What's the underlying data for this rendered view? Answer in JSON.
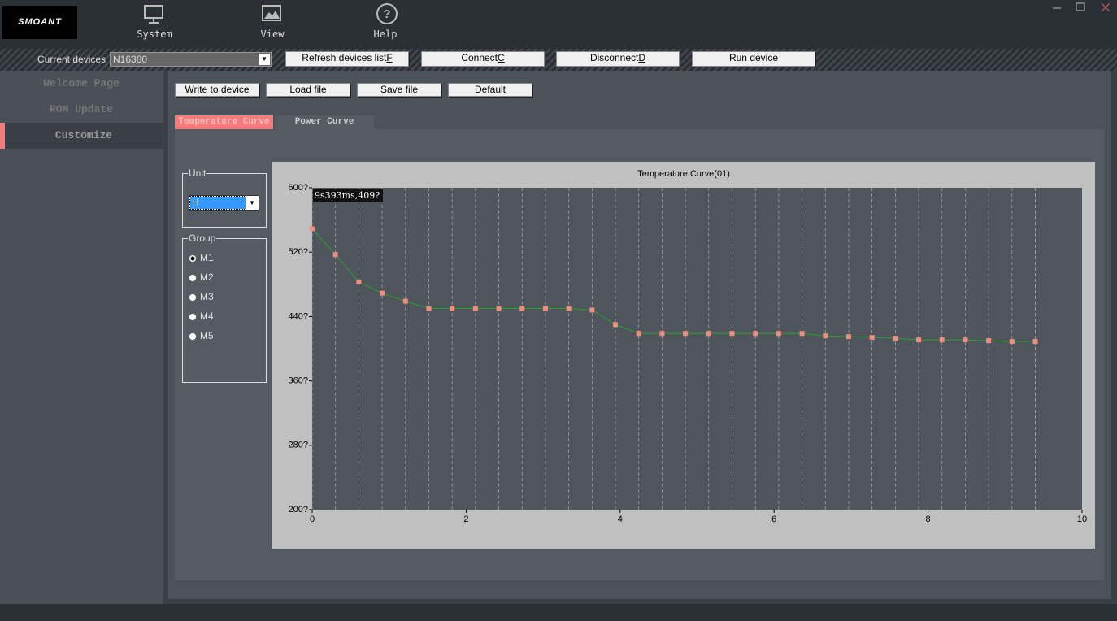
{
  "app": {
    "logo": "SMOANT",
    "nav": [
      "System",
      "View",
      "Help"
    ]
  },
  "toolbar": {
    "device_label": "Current devices",
    "device": "N16380",
    "buttons": [
      {
        "text": "Refresh devices list",
        "key": "F"
      },
      {
        "text": "Connect",
        "key": "C"
      },
      {
        "text": "Disconnect",
        "key": "D"
      },
      {
        "text": "Run device"
      }
    ]
  },
  "sidebar": {
    "items": [
      "Welcome Page",
      "ROM Update",
      "Customize"
    ]
  },
  "actions": [
    "Write to device",
    "Load file",
    "Save file",
    "Default"
  ],
  "tabs": [
    "Temperature Curve",
    "Power Curve"
  ],
  "unit": {
    "label": "Unit",
    "value": "H"
  },
  "group": {
    "label": "Group",
    "options": [
      "M1",
      "M2",
      "M3",
      "M4",
      "M5"
    ]
  },
  "chart": {
    "type": "line",
    "title": "Temperature Curve(01)",
    "x": [
      0,
      0.303,
      0.606,
      0.909,
      1.212,
      1.515,
      1.818,
      2.121,
      2.424,
      2.727,
      3.03,
      3.333,
      3.636,
      3.939,
      4.242,
      4.545,
      4.848,
      5.151,
      5.454,
      5.757,
      6.06,
      6.363,
      6.666,
      6.969,
      7.272,
      7.575,
      7.878,
      8.181,
      8.484,
      8.787,
      9.09,
      9.393
    ],
    "values": [
      549,
      517,
      483,
      469,
      459,
      450,
      450,
      450,
      450,
      450,
      450,
      450,
      448,
      430,
      419,
      419,
      419,
      419,
      419,
      419,
      419,
      419,
      416,
      415,
      414,
      413,
      411,
      411,
      411,
      410,
      409,
      409
    ],
    "color": "#2ca02c",
    "marker_color": "#f28b82",
    "xlim": [
      0,
      10
    ],
    "xticks": [
      0,
      2,
      4,
      6,
      8,
      10
    ],
    "ylim": [
      200,
      600
    ],
    "yticks": [
      {
        "value": 200,
        "label": "200?"
      },
      {
        "value": 280,
        "label": "280?"
      },
      {
        "value": 360,
        "label": "360?"
      },
      {
        "value": 440,
        "label": "440?"
      },
      {
        "value": 520,
        "label": "520?"
      },
      {
        "value": 600,
        "label": "600?"
      }
    ],
    "cursor_label": "9s393ms,409?"
  }
}
